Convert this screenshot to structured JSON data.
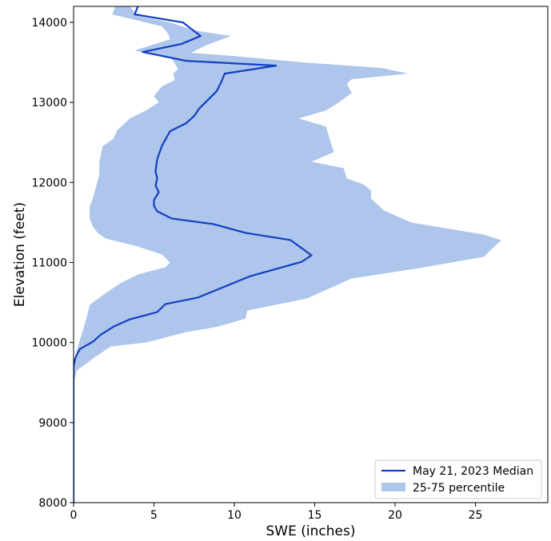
{
  "chart_data": {
    "type": "line",
    "title": "",
    "xlabel": "SWE (inches)",
    "ylabel": "Elevation (feet)",
    "xlim": [
      0,
      29.5
    ],
    "ylim": [
      8000,
      14200
    ],
    "xticks": [
      0,
      5,
      10,
      15,
      20,
      25
    ],
    "yticks": [
      8000,
      9000,
      10000,
      11000,
      12000,
      13000,
      14000
    ],
    "xtick_labels": [
      "0",
      "5",
      "10",
      "15",
      "20",
      "25"
    ],
    "ytick_labels": [
      "8000",
      "9000",
      "10000",
      "11000",
      "12000",
      "13000",
      "14000"
    ],
    "grid": false,
    "legend_position": "bottom-right",
    "colors": {
      "median": "#1240c0",
      "band": "#aec5ec"
    },
    "series": [
      {
        "name": "May 21, 2023 Median",
        "kind": "line",
        "points": [
          [
            0,
            8000
          ],
          [
            0,
            9000
          ],
          [
            0,
            9500
          ],
          [
            0,
            9700
          ],
          [
            0.1,
            9800
          ],
          [
            0.2,
            9850
          ],
          [
            0.4,
            9920
          ],
          [
            1.2,
            10010
          ],
          [
            1.7,
            10100
          ],
          [
            2.5,
            10200
          ],
          [
            3.5,
            10290
          ],
          [
            5.2,
            10380
          ],
          [
            5.7,
            10480
          ],
          [
            7.7,
            10560
          ],
          [
            11.0,
            10830
          ],
          [
            14.2,
            11010
          ],
          [
            14.8,
            11090
          ],
          [
            13.5,
            11280
          ],
          [
            10.7,
            11370
          ],
          [
            8.7,
            11480
          ],
          [
            6.1,
            11550
          ],
          [
            5.2,
            11640
          ],
          [
            5.0,
            11710
          ],
          [
            5.0,
            11780
          ],
          [
            5.3,
            11880
          ],
          [
            5.1,
            11960
          ],
          [
            5.2,
            12050
          ],
          [
            5.1,
            12140
          ],
          [
            5.2,
            12290
          ],
          [
            5.5,
            12460
          ],
          [
            6.0,
            12640
          ],
          [
            7.0,
            12740
          ],
          [
            7.5,
            12830
          ],
          [
            7.8,
            12920
          ],
          [
            8.5,
            13060
          ],
          [
            8.9,
            13140
          ],
          [
            9.2,
            13260
          ],
          [
            9.4,
            13360
          ],
          [
            12.6,
            13460
          ],
          [
            7.0,
            13520
          ],
          [
            4.3,
            13630
          ],
          [
            6.7,
            13730
          ],
          [
            7.9,
            13830
          ],
          [
            6.8,
            14000
          ],
          [
            3.8,
            14100
          ],
          [
            4.0,
            14200
          ]
        ]
      },
      {
        "name": "25-75 percentile",
        "kind": "band",
        "left": [
          [
            0,
            8000
          ],
          [
            0,
            9000
          ],
          [
            0,
            9500
          ],
          [
            0.05,
            9700
          ],
          [
            0.2,
            9900
          ],
          [
            0.5,
            10100
          ],
          [
            0.8,
            10300
          ],
          [
            1.0,
            10470
          ],
          [
            2.0,
            10620
          ],
          [
            3.0,
            10750
          ],
          [
            4.0,
            10850
          ],
          [
            5.7,
            10940
          ],
          [
            6.0,
            11000
          ],
          [
            5.5,
            11100
          ],
          [
            4.0,
            11200
          ],
          [
            2.0,
            11300
          ],
          [
            1.5,
            11370
          ],
          [
            1.2,
            11450
          ],
          [
            1.0,
            11550
          ],
          [
            1.0,
            11700
          ],
          [
            1.2,
            11800
          ],
          [
            1.4,
            11950
          ],
          [
            1.6,
            12100
          ],
          [
            1.6,
            12250
          ],
          [
            1.7,
            12350
          ],
          [
            1.8,
            12450
          ],
          [
            2.5,
            12550
          ],
          [
            2.7,
            12650
          ],
          [
            3.5,
            12800
          ],
          [
            4.5,
            12900
          ],
          [
            5.3,
            13000
          ],
          [
            5.0,
            13080
          ],
          [
            5.5,
            13200
          ],
          [
            6.3,
            13280
          ],
          [
            6.2,
            13360
          ],
          [
            6.5,
            13420
          ],
          [
            6.1,
            13550
          ],
          [
            3.8,
            13650
          ],
          [
            6.0,
            13790
          ],
          [
            5.9,
            13850
          ],
          [
            5.5,
            13950
          ],
          [
            2.4,
            14100
          ],
          [
            2.6,
            14200
          ]
        ],
        "right": [
          [
            0,
            8000
          ],
          [
            0,
            9000
          ],
          [
            0,
            9500
          ],
          [
            0.2,
            9650
          ],
          [
            1.2,
            9800
          ],
          [
            2.3,
            9950
          ],
          [
            4.5,
            10000
          ],
          [
            7.0,
            10130
          ],
          [
            9.0,
            10200
          ],
          [
            10.7,
            10300
          ],
          [
            10.8,
            10400
          ],
          [
            14.5,
            10550
          ],
          [
            17.3,
            10800
          ],
          [
            21.5,
            10930
          ],
          [
            25.5,
            11070
          ],
          [
            26.6,
            11280
          ],
          [
            25.5,
            11350
          ],
          [
            21.0,
            11500
          ],
          [
            19.3,
            11650
          ],
          [
            18.5,
            11800
          ],
          [
            18.5,
            11900
          ],
          [
            18.0,
            11980
          ],
          [
            17.0,
            12050
          ],
          [
            16.8,
            12180
          ],
          [
            14.8,
            12260
          ],
          [
            16.2,
            12380
          ],
          [
            16.0,
            12500
          ],
          [
            15.7,
            12700
          ],
          [
            14.0,
            12800
          ],
          [
            15.7,
            12900
          ],
          [
            16.5,
            13000
          ],
          [
            17.3,
            13120
          ],
          [
            17.0,
            13230
          ],
          [
            17.3,
            13290
          ],
          [
            20.8,
            13360
          ],
          [
            19.2,
            13430
          ],
          [
            14.3,
            13500
          ],
          [
            10.0,
            13580
          ],
          [
            7.3,
            13620
          ],
          [
            8.3,
            13720
          ],
          [
            9.8,
            13830
          ],
          [
            7.5,
            13900
          ],
          [
            6.0,
            14000
          ],
          [
            4.0,
            14080
          ],
          [
            3.5,
            14200
          ]
        ]
      }
    ]
  }
}
